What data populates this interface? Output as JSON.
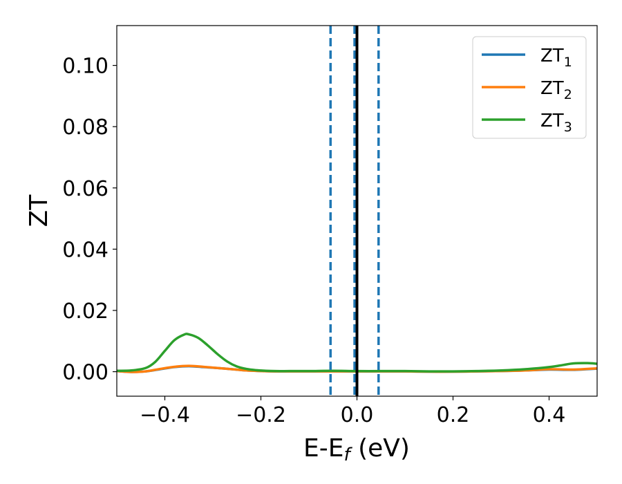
{
  "chart_data": {
    "type": "line",
    "xlabel": {
      "main": "E-E",
      "sub": "f",
      "unit": " (eV)"
    },
    "ylabel": "ZT",
    "xlim": [
      -0.5,
      0.5
    ],
    "ylim": [
      -0.008,
      0.113
    ],
    "xticks": [
      -0.4,
      -0.2,
      0.0,
      0.2,
      0.4
    ],
    "xtick_labels": [
      "−0.4",
      "−0.2",
      "0.0",
      "0.2",
      "0.4"
    ],
    "yticks": [
      0.0,
      0.02,
      0.04,
      0.06,
      0.08,
      0.1
    ],
    "ytick_labels": [
      "0.00",
      "0.02",
      "0.04",
      "0.06",
      "0.08",
      "0.10"
    ],
    "grid": false,
    "legend_position": "top-right",
    "series": [
      {
        "name": "ZT",
        "sub": "1",
        "color": "#1f77b4",
        "x": [
          -0.5,
          -0.47,
          -0.44,
          -0.41,
          -0.38,
          -0.35,
          -0.32,
          -0.29,
          -0.26,
          -0.23,
          -0.2,
          -0.17,
          -0.14,
          -0.1,
          -0.05,
          0.0,
          0.05,
          0.1,
          0.15,
          0.2,
          0.25,
          0.3,
          0.35,
          0.4,
          0.45,
          0.5
        ],
        "y": [
          0.0002,
          -0.0001,
          0.0001,
          0.0008,
          0.0015,
          0.0018,
          0.0015,
          0.0012,
          0.0008,
          0.0004,
          0.0002,
          0.0001,
          0.0001,
          0.0001,
          0.0001,
          0.0001,
          0.0001,
          0.0001,
          0.0,
          0.0,
          0.0001,
          0.0002,
          0.0004,
          0.0007,
          0.0006,
          0.001
        ]
      },
      {
        "name": "ZT",
        "sub": "2",
        "color": "#ff7f0e",
        "x": [
          -0.5,
          -0.47,
          -0.44,
          -0.41,
          -0.38,
          -0.35,
          -0.32,
          -0.29,
          -0.26,
          -0.23,
          -0.2,
          -0.17,
          -0.14,
          -0.1,
          -0.05,
          0.0,
          0.05,
          0.1,
          0.15,
          0.2,
          0.25,
          0.3,
          0.35,
          0.4,
          0.45,
          0.5
        ],
        "y": [
          0.0002,
          -0.0001,
          0.0001,
          0.0009,
          0.0016,
          0.0019,
          0.0016,
          0.0012,
          0.0008,
          0.0004,
          0.0002,
          0.0001,
          0.0001,
          0.0001,
          0.0001,
          0.0001,
          0.0001,
          0.0001,
          0.0,
          0.0,
          0.0001,
          0.0002,
          0.0004,
          0.0008,
          0.0007,
          0.0011
        ]
      },
      {
        "name": "ZT",
        "sub": "3",
        "color": "#2ca02c",
        "x": [
          -0.5,
          -0.47,
          -0.44,
          -0.42,
          -0.4,
          -0.38,
          -0.36,
          -0.35,
          -0.33,
          -0.31,
          -0.29,
          -0.27,
          -0.25,
          -0.23,
          -0.21,
          -0.19,
          -0.17,
          -0.14,
          -0.1,
          -0.05,
          0.0,
          0.05,
          0.1,
          0.15,
          0.2,
          0.25,
          0.3,
          0.35,
          0.4,
          0.43,
          0.45,
          0.48,
          0.5
        ],
        "y": [
          0.0003,
          0.0004,
          0.0012,
          0.0032,
          0.0068,
          0.0103,
          0.0121,
          0.0122,
          0.011,
          0.0085,
          0.0057,
          0.0033,
          0.0017,
          0.0009,
          0.0005,
          0.0003,
          0.0002,
          0.0002,
          0.0002,
          0.0003,
          0.0002,
          0.0002,
          0.0002,
          0.0001,
          0.0001,
          0.0002,
          0.0004,
          0.0008,
          0.0015,
          0.0022,
          0.0027,
          0.0028,
          0.0026
        ]
      }
    ],
    "vlines": [
      {
        "x": -0.055,
        "style": "dashed",
        "color": "#1f77b4"
      },
      {
        "x": -0.005,
        "style": "dashed",
        "color": "#1f77b4"
      },
      {
        "x": 0.045,
        "style": "dashed",
        "color": "#1f77b4"
      },
      {
        "x": 0.0,
        "style": "solid",
        "color": "#000000"
      }
    ]
  }
}
